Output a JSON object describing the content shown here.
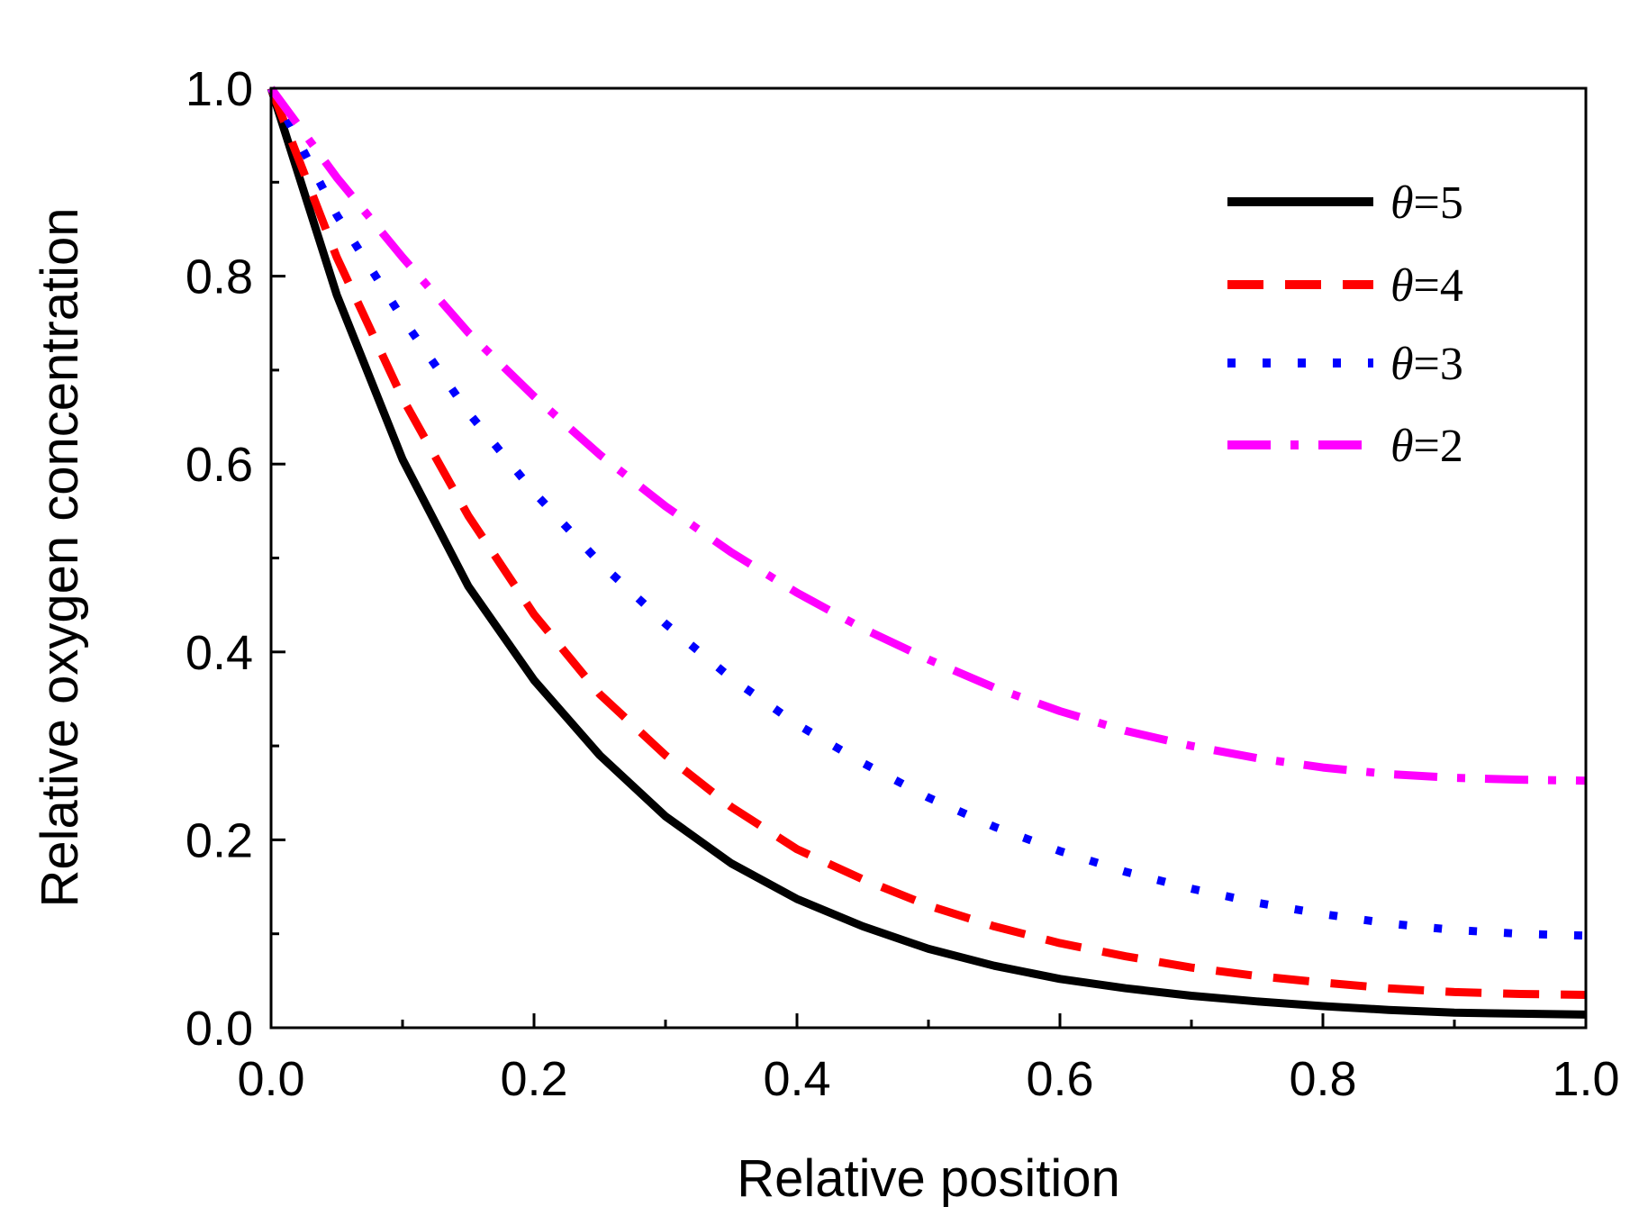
{
  "chart_data": {
    "type": "line",
    "title": "",
    "xlabel": "Relative position",
    "ylabel": "Relative oxygen concentration",
    "xlim": [
      0.0,
      1.0
    ],
    "ylim": [
      0.0,
      1.0
    ],
    "xticks": [
      "0.0",
      "0.2",
      "0.4",
      "0.6",
      "0.8",
      "1.0"
    ],
    "yticks": [
      "0.0",
      "0.2",
      "0.4",
      "0.6",
      "0.8",
      "1.0"
    ],
    "grid": false,
    "legend_position": "top-right",
    "x": [
      0.0,
      0.05,
      0.1,
      0.15,
      0.2,
      0.25,
      0.3,
      0.35,
      0.4,
      0.45,
      0.5,
      0.55,
      0.6,
      0.65,
      0.7,
      0.75,
      0.8,
      0.85,
      0.9,
      0.95,
      1.0
    ],
    "series": [
      {
        "name_symbol": "θ",
        "name_value": "=5",
        "color": "#000000",
        "style": "solid",
        "values": [
          1.0,
          0.78,
          0.605,
          0.47,
          0.37,
          0.29,
          0.225,
          0.175,
          0.137,
          0.108,
          0.084,
          0.066,
          0.052,
          0.042,
          0.034,
          0.028,
          0.023,
          0.019,
          0.016,
          0.015,
          0.014
        ]
      },
      {
        "name_symbol": "θ",
        "name_value": "=4",
        "color": "#ff0000",
        "style": "dash",
        "values": [
          1.0,
          0.82,
          0.67,
          0.545,
          0.44,
          0.355,
          0.29,
          0.235,
          0.19,
          0.158,
          0.13,
          0.108,
          0.09,
          0.076,
          0.064,
          0.055,
          0.048,
          0.042,
          0.038,
          0.036,
          0.035
        ]
      },
      {
        "name_symbol": "θ",
        "name_value": "=3",
        "color": "#0000ff",
        "style": "dot",
        "values": [
          1.0,
          0.865,
          0.755,
          0.655,
          0.57,
          0.495,
          0.43,
          0.372,
          0.323,
          0.282,
          0.245,
          0.214,
          0.188,
          0.166,
          0.148,
          0.133,
          0.121,
          0.111,
          0.104,
          0.1,
          0.098
        ]
      },
      {
        "name_symbol": "θ",
        "name_value": "=2",
        "color": "#ff00ff",
        "style": "dashdot",
        "values": [
          1.0,
          0.905,
          0.82,
          0.74,
          0.672,
          0.61,
          0.555,
          0.506,
          0.463,
          0.425,
          0.392,
          0.362,
          0.337,
          0.316,
          0.3,
          0.287,
          0.277,
          0.27,
          0.266,
          0.264,
          0.263
        ]
      }
    ]
  }
}
